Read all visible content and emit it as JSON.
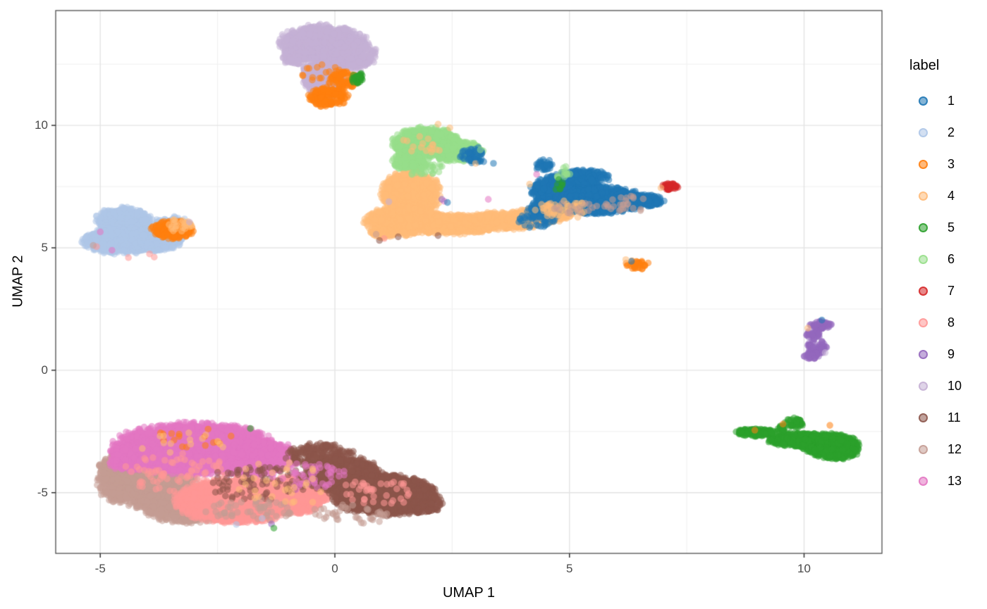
{
  "chart_data": {
    "type": "scatter",
    "xlabel": "UMAP 1",
    "ylabel": "UMAP 2",
    "xlim": [
      -5.95,
      11.66
    ],
    "ylim": [
      -7.48,
      14.69
    ],
    "grid": true,
    "legend_position": "right",
    "point_alpha": 0.55,
    "point_radius": 4.8,
    "x_ticks": [
      {
        "value": -5,
        "label": "-5"
      },
      {
        "value": 0,
        "label": "0"
      },
      {
        "value": 5,
        "label": "5"
      },
      {
        "value": 10,
        "label": "10"
      }
    ],
    "y_ticks": [
      {
        "value": -5,
        "label": "-5"
      },
      {
        "value": 0,
        "label": "0"
      },
      {
        "value": 5,
        "label": "5"
      },
      {
        "value": 10,
        "label": "10"
      }
    ],
    "minor_x": [
      -2.5,
      2.5,
      7.5
    ],
    "minor_y": [
      -2.5,
      2.5,
      7.5,
      12.5
    ],
    "clusters": [
      {
        "label": "10",
        "x": -0.25,
        "y": 13.35,
        "rx": 0.92,
        "ry": 0.75,
        "n": 1100
      },
      {
        "label": "10",
        "x": 0.38,
        "y": 12.9,
        "rx": 0.5,
        "ry": 0.65,
        "n": 350
      },
      {
        "label": "10",
        "x": -0.25,
        "y": 12.0,
        "rx": 0.46,
        "ry": 0.9,
        "n": 420
      },
      {
        "label": "10",
        "x": -0.85,
        "y": 12.8,
        "rx": 0.28,
        "ry": 0.35,
        "n": 110
      },
      {
        "label": "3",
        "x": -0.3,
        "y": 12.15,
        "rx": 0.5,
        "ry": 0.4,
        "n": 20
      },
      {
        "label": "3",
        "x": -0.15,
        "y": 11.15,
        "rx": 0.45,
        "ry": 0.4,
        "n": 170
      },
      {
        "label": "3",
        "x": 0.18,
        "y": 11.85,
        "rx": 0.32,
        "ry": 0.38,
        "n": 90
      },
      {
        "label": "5",
        "x": 0.48,
        "y": 11.95,
        "rx": 0.14,
        "ry": 0.26,
        "n": 32
      },
      {
        "label": "6",
        "x": 1.95,
        "y": 9.3,
        "rx": 0.72,
        "ry": 0.62,
        "n": 750
      },
      {
        "label": "6",
        "x": 2.6,
        "y": 8.95,
        "rx": 0.55,
        "ry": 0.45,
        "n": 300
      },
      {
        "label": "6",
        "x": 1.6,
        "y": 8.55,
        "rx": 0.38,
        "ry": 0.45,
        "n": 170
      },
      {
        "label": "4",
        "x": 1.95,
        "y": 9.25,
        "rx": 0.62,
        "ry": 0.5,
        "n": 16
      },
      {
        "label": "1",
        "x": 2.95,
        "y": 8.75,
        "rx": 0.28,
        "ry": 0.35,
        "n": 60
      },
      {
        "label": "4",
        "x": 1.62,
        "y": 7.2,
        "rx": 0.62,
        "ry": 0.95,
        "n": 950
      },
      {
        "label": "4",
        "x": 1.5,
        "y": 6.1,
        "rx": 0.88,
        "ry": 0.6,
        "n": 850
      },
      {
        "label": "6",
        "x": 1.85,
        "y": 8.25,
        "rx": 0.5,
        "ry": 0.28,
        "n": 45
      },
      {
        "label": "4",
        "x": 2.6,
        "y": 5.95,
        "rx": 0.85,
        "ry": 0.4,
        "n": 650
      },
      {
        "label": "4",
        "x": 3.6,
        "y": 6.1,
        "rx": 0.85,
        "ry": 0.37,
        "n": 520
      },
      {
        "label": "4",
        "x": 4.45,
        "y": 6.35,
        "rx": 0.6,
        "ry": 0.32,
        "n": 260
      },
      {
        "label": "4",
        "x": 1.0,
        "y": 5.62,
        "rx": 0.28,
        "ry": 0.22,
        "n": 70
      },
      {
        "label": "1",
        "x": 4.95,
        "y": 7.3,
        "rx": 0.78,
        "ry": 0.72,
        "n": 750
      },
      {
        "label": "1",
        "x": 5.65,
        "y": 6.95,
        "rx": 0.92,
        "ry": 0.58,
        "n": 950
      },
      {
        "label": "1",
        "x": 6.5,
        "y": 6.92,
        "rx": 0.5,
        "ry": 0.27,
        "n": 250
      },
      {
        "label": "1",
        "x": 5.3,
        "y": 7.9,
        "rx": 0.55,
        "ry": 0.3,
        "n": 160
      },
      {
        "label": "1",
        "x": 4.5,
        "y": 6.6,
        "rx": 0.42,
        "ry": 0.35,
        "n": 130
      },
      {
        "label": "1",
        "x": 4.45,
        "y": 8.4,
        "rx": 0.18,
        "ry": 0.26,
        "n": 35
      },
      {
        "label": "1",
        "x": 4.3,
        "y": 6.1,
        "rx": 0.5,
        "ry": 0.28,
        "n": 45
      },
      {
        "label": "4",
        "x": 4.85,
        "y": 6.55,
        "rx": 0.6,
        "ry": 0.38,
        "n": 60
      },
      {
        "label": "12",
        "x": 6.25,
        "y": 6.8,
        "rx": 0.5,
        "ry": 0.38,
        "n": 26
      },
      {
        "label": "12",
        "x": 5.1,
        "y": 6.65,
        "rx": 0.5,
        "ry": 0.3,
        "n": 16
      },
      {
        "label": "6",
        "x": 4.85,
        "y": 8.05,
        "rx": 0.16,
        "ry": 0.28,
        "n": 14
      },
      {
        "label": "5",
        "x": 4.77,
        "y": 7.55,
        "rx": 0.1,
        "ry": 0.3,
        "n": 8
      },
      {
        "label": "7",
        "x": 7.15,
        "y": 7.5,
        "rx": 0.21,
        "ry": 0.13,
        "n": 42
      },
      {
        "label": "3",
        "x": 6.45,
        "y": 4.3,
        "rx": 0.26,
        "ry": 0.18,
        "n": 32
      },
      {
        "label": "2",
        "x": -4.5,
        "y": 6.1,
        "rx": 0.6,
        "ry": 0.55,
        "n": 520
      },
      {
        "label": "2",
        "x": -4.55,
        "y": 5.3,
        "rx": 0.82,
        "ry": 0.55,
        "n": 720
      },
      {
        "label": "2",
        "x": -3.8,
        "y": 5.35,
        "rx": 0.55,
        "ry": 0.5,
        "n": 380
      },
      {
        "label": "2",
        "x": -3.5,
        "y": 5.95,
        "rx": 0.4,
        "ry": 0.33,
        "n": 130
      },
      {
        "label": "3",
        "x": -3.45,
        "y": 5.75,
        "rx": 0.46,
        "ry": 0.38,
        "n": 240
      },
      {
        "label": "4",
        "x": -3.3,
        "y": 5.9,
        "rx": 0.3,
        "ry": 0.26,
        "n": 25
      },
      {
        "label": "9",
        "x": 10.35,
        "y": 1.85,
        "rx": 0.25,
        "ry": 0.18,
        "n": 55
      },
      {
        "label": "9",
        "x": 10.2,
        "y": 1.45,
        "rx": 0.15,
        "ry": 0.22,
        "n": 35
      },
      {
        "label": "9",
        "x": 10.28,
        "y": 0.95,
        "rx": 0.2,
        "ry": 0.3,
        "n": 60
      },
      {
        "label": "9",
        "x": 10.15,
        "y": 0.6,
        "rx": 0.17,
        "ry": 0.16,
        "n": 28
      },
      {
        "label": "5",
        "x": 9.0,
        "y": -2.55,
        "rx": 0.5,
        "ry": 0.16,
        "n": 160
      },
      {
        "label": "5",
        "x": 9.9,
        "y": -2.85,
        "rx": 0.65,
        "ry": 0.3,
        "n": 380
      },
      {
        "label": "5",
        "x": 10.6,
        "y": -3.1,
        "rx": 0.62,
        "ry": 0.52,
        "n": 750,
        "rot": -15
      },
      {
        "label": "5",
        "x": 9.78,
        "y": -2.15,
        "rx": 0.2,
        "ry": 0.22,
        "n": 50
      },
      {
        "label": "5",
        "x": 9.5,
        "y": -2.38,
        "rx": 0.13,
        "ry": 0.13,
        "n": 16
      },
      {
        "label": "12",
        "x": -4.0,
        "y": -4.6,
        "rx": 1.05,
        "ry": 1.0,
        "n": 1500
      },
      {
        "label": "12",
        "x": -3.1,
        "y": -5.5,
        "rx": 1.1,
        "ry": 0.75,
        "n": 950
      },
      {
        "label": "12",
        "x": -4.55,
        "y": -4.0,
        "rx": 0.5,
        "ry": 0.6,
        "n": 260
      },
      {
        "label": "13",
        "x": -3.0,
        "y": -3.2,
        "rx": 1.72,
        "ry": 1.05,
        "n": 2700
      },
      {
        "label": "13",
        "x": -1.8,
        "y": -3.55,
        "rx": 0.95,
        "ry": 0.8,
        "n": 850
      },
      {
        "label": "13",
        "x": -4.35,
        "y": -3.6,
        "rx": 0.5,
        "ry": 0.55,
        "n": 260
      },
      {
        "label": "8",
        "x": -2.1,
        "y": -5.35,
        "rx": 1.28,
        "ry": 0.9,
        "n": 2300
      },
      {
        "label": "8",
        "x": -0.85,
        "y": -5.1,
        "rx": 0.72,
        "ry": 0.75,
        "n": 750
      },
      {
        "label": "11",
        "x": -0.3,
        "y": -3.5,
        "rx": 0.72,
        "ry": 0.55,
        "n": 260
      },
      {
        "label": "11",
        "x": 0.2,
        "y": -4.3,
        "rx": 0.82,
        "ry": 0.75,
        "n": 750
      },
      {
        "label": "11",
        "x": 1.05,
        "y": -5.1,
        "rx": 1.08,
        "ry": 0.82,
        "n": 1900
      },
      {
        "label": "11",
        "x": 1.8,
        "y": -5.35,
        "rx": 0.5,
        "ry": 0.55,
        "n": 280
      },
      {
        "label": "8",
        "x": -3.3,
        "y": -4.3,
        "rx": 1.25,
        "ry": 0.9,
        "n": 85
      },
      {
        "label": "11",
        "x": -1.5,
        "y": -4.6,
        "rx": 1.2,
        "ry": 0.8,
        "n": 90
      },
      {
        "label": "13",
        "x": -0.6,
        "y": -4.3,
        "rx": 0.85,
        "ry": 0.6,
        "n": 55
      },
      {
        "label": "12",
        "x": -1.8,
        "y": -5.7,
        "rx": 1.0,
        "ry": 0.45,
        "n": 55
      },
      {
        "label": "3",
        "x": -2.7,
        "y": -2.75,
        "rx": 1.35,
        "ry": 0.45,
        "n": 16
      },
      {
        "label": "4",
        "x": -1.2,
        "y": -4.6,
        "rx": 1.3,
        "ry": 0.9,
        "n": 30
      },
      {
        "label": "4",
        "x": -3.2,
        "y": -3.0,
        "rx": 1.0,
        "ry": 0.5,
        "n": 14
      },
      {
        "label": "8",
        "x": 0.9,
        "y": -5.0,
        "rx": 0.8,
        "ry": 0.6,
        "n": 40
      },
      {
        "label": "12",
        "x": 0.3,
        "y": -5.9,
        "rx": 0.9,
        "ry": 0.4,
        "n": 40
      }
    ],
    "outliers": [
      {
        "label": "1",
        "x": 3.38,
        "y": 8.45
      },
      {
        "label": "4",
        "x": 3.0,
        "y": 8.45
      },
      {
        "label": "4",
        "x": 4.15,
        "y": 7.6
      },
      {
        "label": "1",
        "x": 4.37,
        "y": 7.8
      },
      {
        "label": "13",
        "x": 3.27,
        "y": 6.98
      },
      {
        "label": "13",
        "x": 4.3,
        "y": 8.0
      },
      {
        "label": "13",
        "x": 2.33,
        "y": 6.9
      },
      {
        "label": "9",
        "x": 2.28,
        "y": 6.98
      },
      {
        "label": "1",
        "x": 2.4,
        "y": 6.85
      },
      {
        "label": "10",
        "x": 1.15,
        "y": 6.88
      },
      {
        "label": "12",
        "x": 0.88,
        "y": 5.55
      },
      {
        "label": "8",
        "x": 1.05,
        "y": 5.38
      },
      {
        "label": "11",
        "x": 1.35,
        "y": 5.45
      },
      {
        "label": "11",
        "x": 2.2,
        "y": 5.5
      },
      {
        "label": "11",
        "x": 0.95,
        "y": 5.3
      },
      {
        "label": "4",
        "x": 6.95,
        "y": 7.45
      },
      {
        "label": "1",
        "x": 6.32,
        "y": 4.45
      },
      {
        "label": "4",
        "x": 6.2,
        "y": 4.52
      },
      {
        "label": "10",
        "x": -3.1,
        "y": 6.05
      },
      {
        "label": "8",
        "x": -3.85,
        "y": 4.62
      },
      {
        "label": "8",
        "x": -3.95,
        "y": 4.75
      },
      {
        "label": "8",
        "x": -5.08,
        "y": 5.05
      },
      {
        "label": "12",
        "x": -5.15,
        "y": 5.1
      },
      {
        "label": "13",
        "x": -5.0,
        "y": 5.65
      },
      {
        "label": "8",
        "x": -4.4,
        "y": 4.6
      },
      {
        "label": "13",
        "x": -4.75,
        "y": 4.9
      },
      {
        "label": "1",
        "x": 10.38,
        "y": 2.05
      },
      {
        "label": "4",
        "x": 10.08,
        "y": 1.72
      },
      {
        "label": "10",
        "x": 10.45,
        "y": 0.72
      },
      {
        "label": "3",
        "x": 9.55,
        "y": -2.2
      },
      {
        "label": "3",
        "x": 8.95,
        "y": -2.45
      },
      {
        "label": "3",
        "x": 10.55,
        "y": -2.25
      },
      {
        "label": "5",
        "x": -1.8,
        "y": -2.38
      },
      {
        "label": "9",
        "x": -1.35,
        "y": -6.28
      },
      {
        "label": "5",
        "x": -1.3,
        "y": -6.45
      },
      {
        "label": "2",
        "x": -2.1,
        "y": -6.3
      },
      {
        "label": "2",
        "x": -1.55,
        "y": -6.05
      },
      {
        "label": "6",
        "x": 3.1,
        "y": 9.0
      },
      {
        "label": "4",
        "x": 2.45,
        "y": 9.9
      },
      {
        "label": "4",
        "x": 2.2,
        "y": 10.05
      },
      {
        "label": "1",
        "x": 2.85,
        "y": 8.9
      },
      {
        "label": "1",
        "x": 3.0,
        "y": 8.7
      },
      {
        "label": "1",
        "x": 3.1,
        "y": 8.55
      }
    ]
  },
  "legend": {
    "title": "label",
    "items": [
      {
        "label": "1",
        "color": "#1f77b4"
      },
      {
        "label": "2",
        "color": "#aec7e8"
      },
      {
        "label": "3",
        "color": "#ff7f0e"
      },
      {
        "label": "4",
        "color": "#ffbb78"
      },
      {
        "label": "5",
        "color": "#2ca02c"
      },
      {
        "label": "6",
        "color": "#98df8a"
      },
      {
        "label": "7",
        "color": "#d62728"
      },
      {
        "label": "8",
        "color": "#ff9896"
      },
      {
        "label": "9",
        "color": "#9467bd"
      },
      {
        "label": "10",
        "color": "#c5b0d5"
      },
      {
        "label": "11",
        "color": "#8c564b"
      },
      {
        "label": "12",
        "color": "#c49c94"
      },
      {
        "label": "13",
        "color": "#e377c2"
      }
    ]
  },
  "style": {
    "panel_border_color": "#4d4d4d",
    "major_grid_color": "#e4e4e4",
    "minor_grid_color": "#f0f0f0",
    "tick_color": "#333333"
  }
}
